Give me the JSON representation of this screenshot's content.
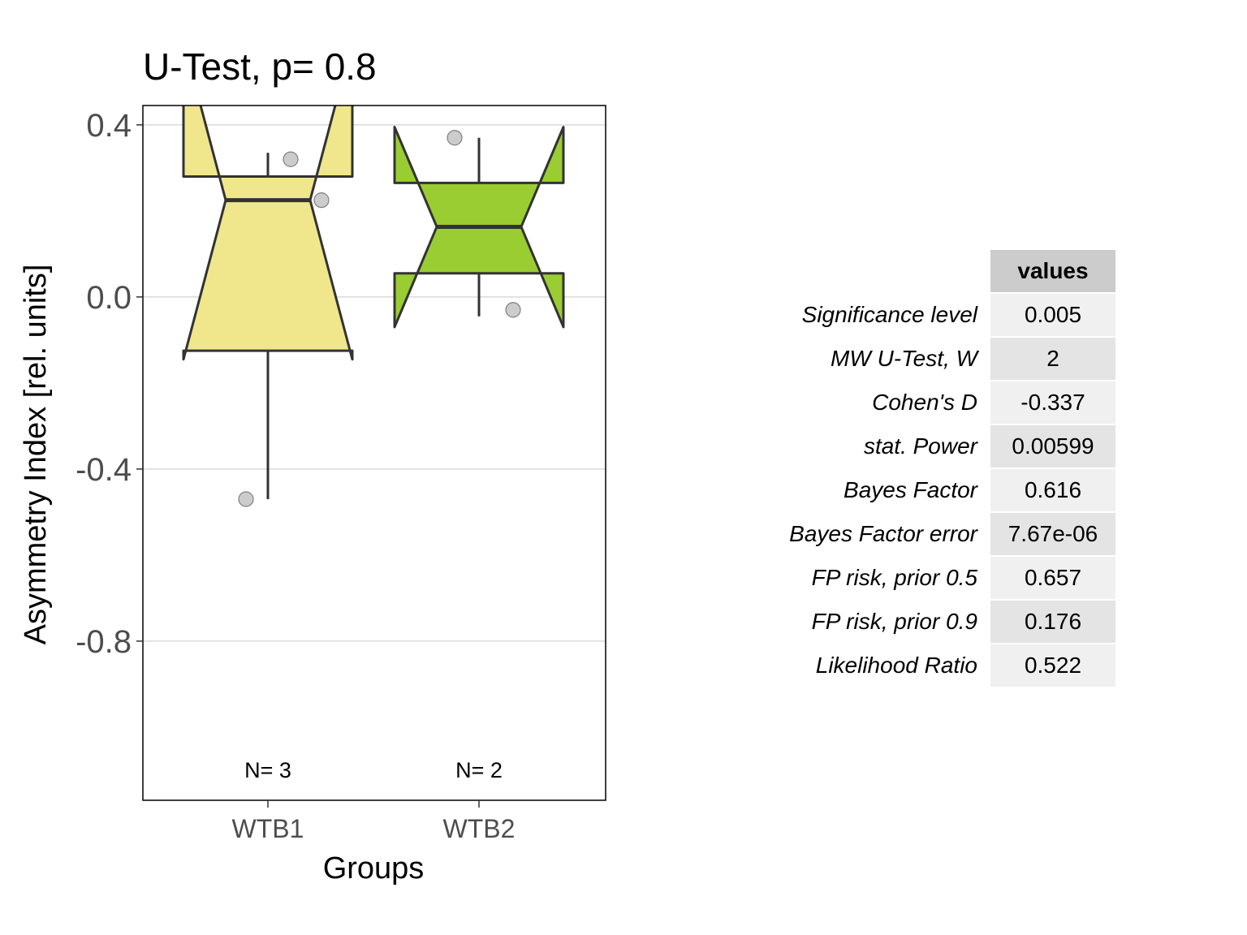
{
  "chart_data": {
    "type": "boxplot",
    "title": "U-Test, p= 0.8",
    "xlabel": "Groups",
    "ylabel": "Asymmetry Index [rel. units]",
    "ylim": [
      -1.17,
      0.445
    ],
    "yticks": [
      0.4,
      0.0,
      -0.4,
      -0.8
    ],
    "ytick_labels": [
      "0.4",
      "0.0",
      "-0.4",
      "-0.8"
    ],
    "grid": "horizontal",
    "categories": [
      "WTB1",
      "WTB2"
    ],
    "groups": [
      {
        "name": "WTB1",
        "n_label": "N= 3",
        "color": "#f0e68c",
        "lower_whisker": -0.47,
        "q1": -0.125,
        "median": 0.225,
        "q3": 0.28,
        "upper_whisker": 0.335,
        "notch_low": -0.145,
        "notch_high": 0.595,
        "points": [
          0.32,
          0.225,
          -0.47
        ]
      },
      {
        "name": "WTB2",
        "n_label": "N= 2",
        "color": "#9acd32",
        "lower_whisker": -0.045,
        "q1": 0.055,
        "median": 0.163,
        "q3": 0.265,
        "upper_whisker": 0.37,
        "notch_low": -0.07,
        "notch_high": 0.395,
        "points": [
          0.37,
          -0.03
        ]
      }
    ]
  },
  "stats_table": {
    "column_header": "values",
    "rows": [
      {
        "label": "Significance level",
        "value": "0.005"
      },
      {
        "label": "MW U-Test, W",
        "value": "2"
      },
      {
        "label": "Cohen's D",
        "value": "-0.337"
      },
      {
        "label": "stat. Power",
        "value": "0.00599"
      },
      {
        "label": "Bayes Factor",
        "value": "0.616"
      },
      {
        "label": "Bayes Factor error",
        "value": "7.67e-06"
      },
      {
        "label": "FP risk, prior  0.5",
        "value": "0.657"
      },
      {
        "label": "FP risk, prior  0.9",
        "value": "0.176"
      },
      {
        "label": "Likelihood Ratio",
        "value": "0.522"
      }
    ]
  }
}
